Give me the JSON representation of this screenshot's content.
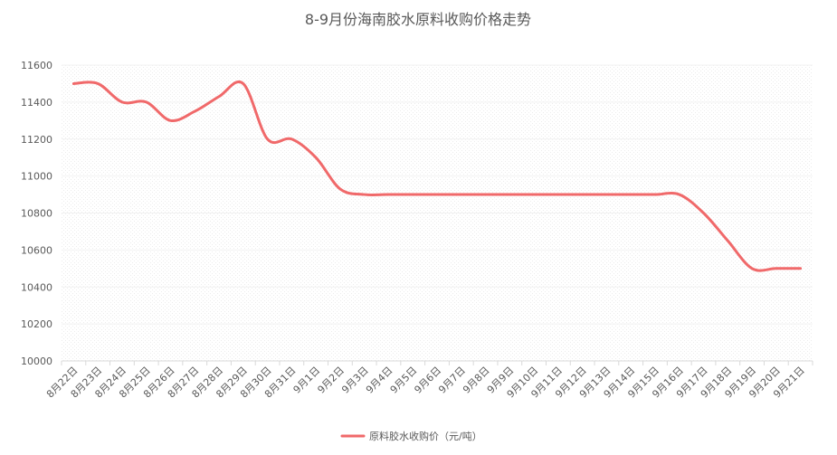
{
  "chart_data": {
    "type": "line",
    "title": "8-9月份海南胶水原料收购价格走势",
    "xlabel": "",
    "ylabel": "",
    "ylim": [
      10000,
      11600
    ],
    "yticks": [
      10000,
      10200,
      10400,
      10600,
      10800,
      11000,
      11200,
      11400,
      11600
    ],
    "grid": true,
    "legend_position": "bottom",
    "categories": [
      "8月22日",
      "8月23日",
      "8月24日",
      "8月25日",
      "8月26日",
      "8月27日",
      "8月28日",
      "8月29日",
      "8月30日",
      "8月31日",
      "9月1日",
      "9月2日",
      "9月3日",
      "9月4日",
      "9月5日",
      "9月6日",
      "9月7日",
      "9月8日",
      "9月9日",
      "9月10日",
      "9月11日",
      "9月12日",
      "9月13日",
      "9月14日",
      "9月15日",
      "9月16日",
      "9月17日",
      "9月18日",
      "9月19日",
      "9月20日",
      "9月21日"
    ],
    "series": [
      {
        "name": "原料胶水收购价（元/吨）",
        "color": "#f0696a",
        "values": [
          11500,
          11500,
          11400,
          11400,
          11300,
          11350,
          11430,
          11500,
          11200,
          11200,
          11100,
          10930,
          10900,
          10900,
          10900,
          10900,
          10900,
          10900,
          10900,
          10900,
          10900,
          10900,
          10900,
          10900,
          10900,
          10900,
          10800,
          10650,
          10500,
          10500,
          10500
        ]
      }
    ]
  }
}
